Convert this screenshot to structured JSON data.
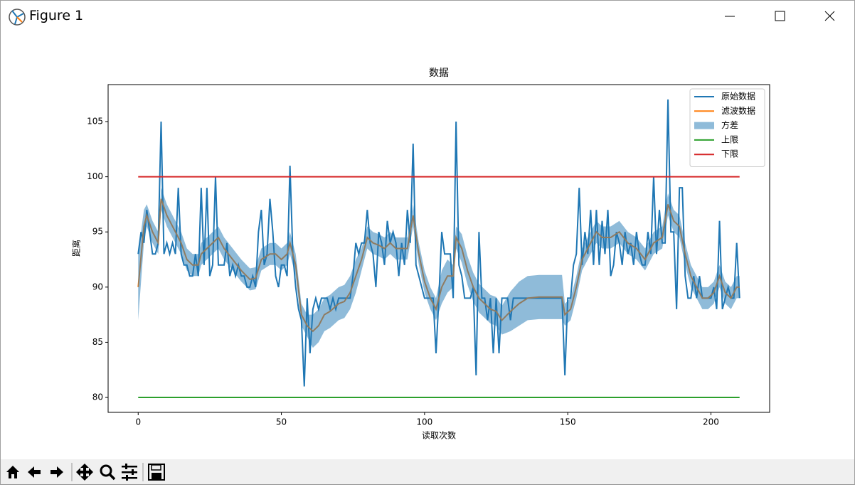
{
  "window": {
    "title": "Figure 1"
  },
  "chart_data": {
    "type": "line",
    "title": "数据",
    "xlabel": "读取次数",
    "ylabel": "距离",
    "xlim": [
      -10.5,
      220.5
    ],
    "ylim": [
      78.65,
      108.35
    ],
    "xticks": [
      0,
      50,
      100,
      150,
      200
    ],
    "yticks": [
      80,
      85,
      90,
      95,
      100,
      105
    ],
    "legend": "upper right",
    "series": [
      {
        "name": "原始数据",
        "color": "#1f77b4",
        "x": [
          0,
          1,
          2,
          3,
          4,
          5,
          6,
          7,
          8,
          9,
          10,
          11,
          12,
          13,
          14,
          15,
          16,
          17,
          18,
          19,
          20,
          21,
          22,
          23,
          24,
          25,
          26,
          27,
          28,
          29,
          30,
          31,
          32,
          33,
          34,
          35,
          36,
          37,
          38,
          39,
          40,
          41,
          42,
          43,
          44,
          45,
          46,
          47,
          48,
          49,
          50,
          51,
          52,
          53,
          54,
          55,
          56,
          57,
          58,
          59,
          60,
          61,
          62,
          63,
          64,
          65,
          66,
          67,
          68,
          69,
          70,
          71,
          72,
          73,
          74,
          75,
          76,
          77,
          78,
          79,
          80,
          81,
          82,
          83,
          84,
          85,
          86,
          87,
          88,
          89,
          90,
          91,
          92,
          93,
          94,
          95,
          96,
          97,
          98,
          99,
          100,
          101,
          102,
          103,
          104,
          105,
          106,
          107,
          108,
          109,
          110,
          111,
          112,
          113,
          114,
          115,
          116,
          117,
          118,
          119,
          120,
          121,
          122,
          123,
          124,
          125,
          126,
          127,
          128,
          129,
          130,
          131,
          132,
          133,
          134,
          135,
          136,
          137,
          138,
          139,
          140,
          141,
          142,
          143,
          144,
          145,
          146,
          147,
          148,
          149,
          150,
          151,
          152,
          153,
          154,
          155,
          156,
          157,
          158,
          159,
          160,
          161,
          162,
          163,
          164,
          165,
          166,
          167,
          168,
          169,
          170,
          171,
          172,
          173,
          174,
          175,
          176,
          177,
          178,
          179,
          180,
          181,
          182,
          183,
          184,
          185,
          186,
          187,
          188,
          189,
          190,
          191,
          192,
          193,
          194,
          195,
          196,
          197,
          198,
          199,
          200,
          201,
          202,
          203,
          204,
          205,
          206,
          207,
          208,
          209,
          210
        ],
        "values": [
          93,
          95,
          94,
          97,
          95,
          93,
          93,
          94,
          105,
          93,
          94,
          93,
          94,
          93,
          99,
          93,
          92,
          92,
          91,
          91,
          93,
          91,
          99,
          92,
          99,
          91,
          92,
          100,
          92,
          92,
          92,
          94,
          91,
          92,
          91,
          92,
          91,
          91,
          90,
          90,
          91,
          90,
          95,
          97,
          92,
          93,
          98,
          95,
          91,
          90,
          92,
          92,
          91,
          101,
          93,
          90,
          88,
          87,
          81,
          89,
          84,
          88,
          89,
          88,
          89,
          89,
          89,
          88,
          89,
          88,
          89,
          89,
          89,
          89,
          89,
          91,
          94,
          93,
          94,
          94,
          97,
          94,
          93,
          90,
          95,
          94,
          92,
          96,
          94,
          95,
          94,
          91,
          94,
          92,
          97,
          94,
          103,
          92,
          91,
          90,
          89,
          89,
          89,
          89,
          84,
          89,
          95,
          93,
          93,
          93,
          89,
          105,
          92,
          91,
          89,
          89,
          89,
          90,
          82,
          95,
          89,
          89,
          87,
          89,
          84,
          89,
          84,
          89,
          89,
          89,
          87,
          89,
          89,
          89,
          89,
          89,
          89,
          89,
          89,
          89,
          89,
          89,
          89,
          89,
          89,
          89,
          89,
          89,
          89,
          82,
          89,
          89,
          92,
          93,
          99,
          92,
          95,
          93,
          97,
          92,
          97,
          92,
          96,
          93,
          97,
          91,
          92,
          95,
          94,
          92,
          95,
          93,
          94,
          92,
          95,
          93,
          92,
          92,
          95,
          93,
          100,
          93,
          97,
          94,
          94,
          107,
          95,
          95,
          88,
          99,
          99,
          91,
          89,
          89,
          91,
          89,
          91,
          89,
          89,
          89,
          89,
          90,
          88,
          96,
          88,
          89,
          90,
          89,
          89,
          94,
          89
        ]
      },
      {
        "name": "滤波数据",
        "color": "#ff7f0e",
        "x": [
          0,
          2,
          3,
          5,
          7,
          8,
          10,
          13,
          15,
          17,
          19,
          21,
          22,
          24,
          26,
          28,
          30,
          33,
          36,
          39,
          41,
          43,
          46,
          48,
          50,
          52,
          53,
          55,
          57,
          59,
          61,
          63,
          65,
          67,
          70,
          72,
          74,
          76,
          78,
          80,
          82,
          84,
          86,
          88,
          90,
          92,
          94,
          96,
          98,
          100,
          102,
          104,
          106,
          108,
          110,
          111,
          113,
          115,
          117,
          119,
          121,
          123,
          125,
          127,
          130,
          133,
          136,
          140,
          144,
          148,
          149,
          151,
          153,
          155,
          157,
          160,
          162,
          165,
          168,
          171,
          174,
          177,
          180,
          183,
          185,
          187,
          189,
          191,
          193,
          195,
          197,
          199,
          201,
          203,
          205,
          207,
          209,
          210
        ],
        "values": [
          90,
          95.5,
          96.5,
          95,
          94,
          98,
          96.5,
          95,
          94,
          92.5,
          92,
          92,
          93,
          93.5,
          94,
          94.5,
          93.5,
          92.5,
          91.5,
          90.7,
          90.8,
          92.5,
          93,
          93,
          92.5,
          93,
          94,
          92,
          87.5,
          86.5,
          86,
          86.5,
          87.5,
          87.8,
          88.5,
          88.7,
          89.5,
          91,
          92.5,
          94.5,
          94,
          93.8,
          93.5,
          94,
          93.5,
          93.5,
          93.5,
          96.5,
          93,
          90.5,
          89,
          88,
          90,
          91,
          91,
          94.5,
          93.5,
          91.5,
          90,
          89,
          88.5,
          88,
          87.8,
          87,
          87.8,
          88.5,
          89,
          89.1,
          89.1,
          89.1,
          87.5,
          88,
          90,
          92.5,
          93.5,
          95,
          94.5,
          94.5,
          95,
          94,
          93.5,
          92.5,
          94,
          94.5,
          97.5,
          96,
          95.5,
          93,
          91,
          90,
          89,
          89,
          89.5,
          91,
          89.5,
          89,
          90,
          90
        ]
      },
      {
        "name": "方差",
        "color": "#1f77b4",
        "alpha": 0.5,
        "x": [
          0,
          2,
          3,
          5,
          7,
          8,
          10,
          13,
          15,
          17,
          19,
          21,
          22,
          24,
          26,
          28,
          30,
          33,
          36,
          39,
          41,
          43,
          46,
          48,
          50,
          52,
          53,
          55,
          57,
          59,
          61,
          63,
          65,
          67,
          70,
          72,
          74,
          76,
          78,
          80,
          82,
          84,
          86,
          88,
          90,
          92,
          94,
          96,
          98,
          100,
          102,
          104,
          106,
          108,
          110,
          111,
          113,
          115,
          117,
          119,
          121,
          123,
          125,
          127,
          130,
          133,
          136,
          140,
          144,
          148,
          149,
          151,
          153,
          155,
          157,
          160,
          162,
          165,
          168,
          171,
          174,
          177,
          180,
          183,
          185,
          187,
          189,
          191,
          193,
          195,
          197,
          199,
          201,
          203,
          205,
          207,
          209,
          210
        ],
        "lower": [
          87,
          94,
          95.5,
          94,
          93,
          97,
          95.5,
          94,
          93,
          91.5,
          91,
          91,
          92,
          92.5,
          93,
          93.5,
          92.5,
          91.5,
          90.5,
          89.7,
          89.8,
          91.5,
          92,
          92,
          91.5,
          92,
          93,
          91,
          86.5,
          85.5,
          84.5,
          85,
          86,
          86.3,
          87,
          87.2,
          88,
          89.5,
          91.5,
          93.5,
          93,
          92.8,
          92.5,
          93,
          92.5,
          92.5,
          92.5,
          95.5,
          92,
          89.5,
          88,
          87,
          88.5,
          89.5,
          90,
          93.5,
          92.2,
          90.2,
          88.7,
          87.7,
          87.2,
          86.7,
          86.5,
          85.7,
          86,
          86.5,
          87,
          87.1,
          87.1,
          87.1,
          86.5,
          87,
          89,
          91.5,
          92.5,
          94,
          93.5,
          93.5,
          94,
          93,
          92.5,
          91.5,
          93,
          93.5,
          96.5,
          95,
          94.5,
          92,
          90,
          89,
          88,
          88,
          88.5,
          90,
          88.5,
          88,
          89,
          89
        ],
        "upper": [
          93,
          97,
          97.5,
          96,
          95,
          99,
          97.5,
          96,
          95,
          93.5,
          93,
          93,
          94,
          94.5,
          95,
          95.5,
          94.5,
          93.5,
          92.5,
          91.7,
          91.8,
          93.5,
          94,
          94,
          93.5,
          94,
          95,
          93,
          88.5,
          87.5,
          87.5,
          88,
          89,
          89.3,
          90,
          90.2,
          91,
          92.5,
          93.5,
          95.5,
          95,
          94.8,
          94.5,
          95,
          94.5,
          94.5,
          94.5,
          97.5,
          94,
          91.5,
          90,
          89,
          91.5,
          92.5,
          92,
          95.5,
          94.8,
          92.8,
          91.3,
          90.3,
          89.8,
          89.3,
          89.1,
          88.3,
          89.6,
          90.5,
          91,
          91.1,
          91.1,
          91.1,
          88.5,
          89,
          91,
          93.5,
          94.5,
          96,
          95.5,
          95.5,
          96,
          95,
          94.5,
          93.5,
          95,
          95.5,
          98.5,
          97,
          96.5,
          94,
          92,
          91,
          90,
          90,
          90.5,
          92,
          90.5,
          90,
          91,
          91
        ]
      },
      {
        "name": "上限",
        "color": "#2ca02c",
        "x": [
          0,
          210
        ],
        "values": [
          80,
          80
        ]
      },
      {
        "name": "下限",
        "color": "#d62728",
        "x": [
          0,
          210
        ],
        "values": [
          100,
          100
        ]
      }
    ]
  }
}
